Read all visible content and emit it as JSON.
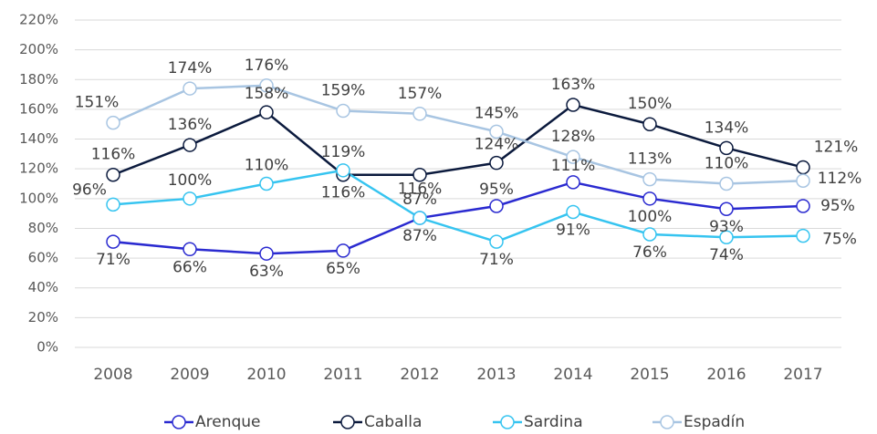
{
  "chart_data": {
    "type": "line",
    "categories": [
      "2008",
      "2009",
      "2010",
      "2011",
      "2012",
      "2013",
      "2014",
      "2015",
      "2016",
      "2017"
    ],
    "series": [
      {
        "name": "Arenque",
        "color": "#2a2ad0",
        "values": [
          71,
          66,
          63,
          65,
          87,
          95,
          111,
          100,
          93,
          95
        ],
        "value_labels": [
          "71%",
          "66%",
          "63%",
          "65%",
          "87%",
          "95%",
          "111%",
          "100%",
          "93%",
          "95%"
        ]
      },
      {
        "name": "Caballa",
        "color": "#0b1a3d",
        "values": [
          116,
          136,
          158,
          116,
          116,
          124,
          163,
          150,
          134,
          121
        ],
        "value_labels": [
          "116%",
          "136%",
          "158%",
          "116%",
          "116%",
          "124%",
          "163%",
          "150%",
          "134%",
          "121%"
        ]
      },
      {
        "name": "Sardina",
        "color": "#36c4f0",
        "values": [
          96,
          100,
          110,
          119,
          87,
          71,
          91,
          76,
          74,
          75
        ],
        "value_labels": [
          "96%",
          "100%",
          "110%",
          "119%",
          "87%",
          "71%",
          "91%",
          "76%",
          "74%",
          "75%"
        ]
      },
      {
        "name": "Espadín",
        "color": "#a8c5e2",
        "values": [
          151,
          174,
          176,
          159,
          157,
          145,
          128,
          113,
          110,
          112
        ],
        "value_labels": [
          "151%",
          "174%",
          "176%",
          "159%",
          "157%",
          "145%",
          "128%",
          "113%",
          "110%",
          "112%"
        ]
      }
    ],
    "ylim": [
      0,
      220
    ],
    "yticks": [
      {
        "value": 0,
        "label": "0%"
      },
      {
        "value": 20,
        "label": "20%"
      },
      {
        "value": 40,
        "label": "40%"
      },
      {
        "value": 60,
        "label": "60%"
      },
      {
        "value": 80,
        "label": "80%"
      },
      {
        "value": 100,
        "label": "100%"
      },
      {
        "value": 120,
        "label": "120%"
      },
      {
        "value": 140,
        "label": "140%"
      },
      {
        "value": 160,
        "label": "160%"
      },
      {
        "value": 180,
        "label": "180%"
      },
      {
        "value": 200,
        "label": "200%"
      },
      {
        "value": 220,
        "label": "220%"
      }
    ],
    "grid": true,
    "legend": "bottom"
  }
}
